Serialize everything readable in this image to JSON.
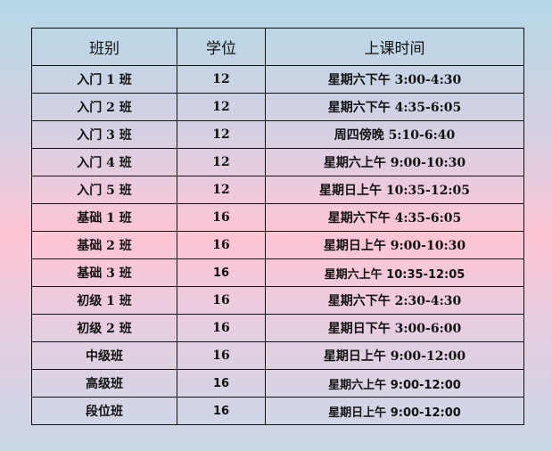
{
  "table": {
    "headers": [
      "班别",
      "学位",
      "上课时间"
    ],
    "rows": [
      [
        "入门 1 班",
        "12",
        "星期六下午 3:00-4:30"
      ],
      [
        "入门 2 班",
        "12",
        "星期六下午 4:35-6:05"
      ],
      [
        "入门 3 班",
        "12",
        "周四傍晚 5:10-6:40"
      ],
      [
        "入门 4 班",
        "12",
        "星期六上午 9:00-10:30"
      ],
      [
        "入门 5 班",
        "12",
        "星期日上午 10:35-12:05"
      ],
      [
        "基础 1 班",
        "16",
        "星期六下午 4:35-6:05"
      ],
      [
        "基础 2 班",
        "16",
        "星期日上午 9:00-10:30"
      ],
      [
        "基础 3 班",
        "16",
        "星期六上午 10:35-12:05"
      ],
      [
        "初级 1 班",
        "16",
        "星期六下午 2:30-4:30"
      ],
      [
        "初级 2 班",
        "16",
        "星期日下午 3:00-6:00"
      ],
      [
        "中级班",
        "16",
        "星期日上午 9:00-12:00"
      ],
      [
        "高级班",
        "16",
        "星期六上午 9:00-12:00"
      ],
      [
        "段位班",
        "16",
        "星期日上午 9:00-12:00"
      ]
    ]
  }
}
